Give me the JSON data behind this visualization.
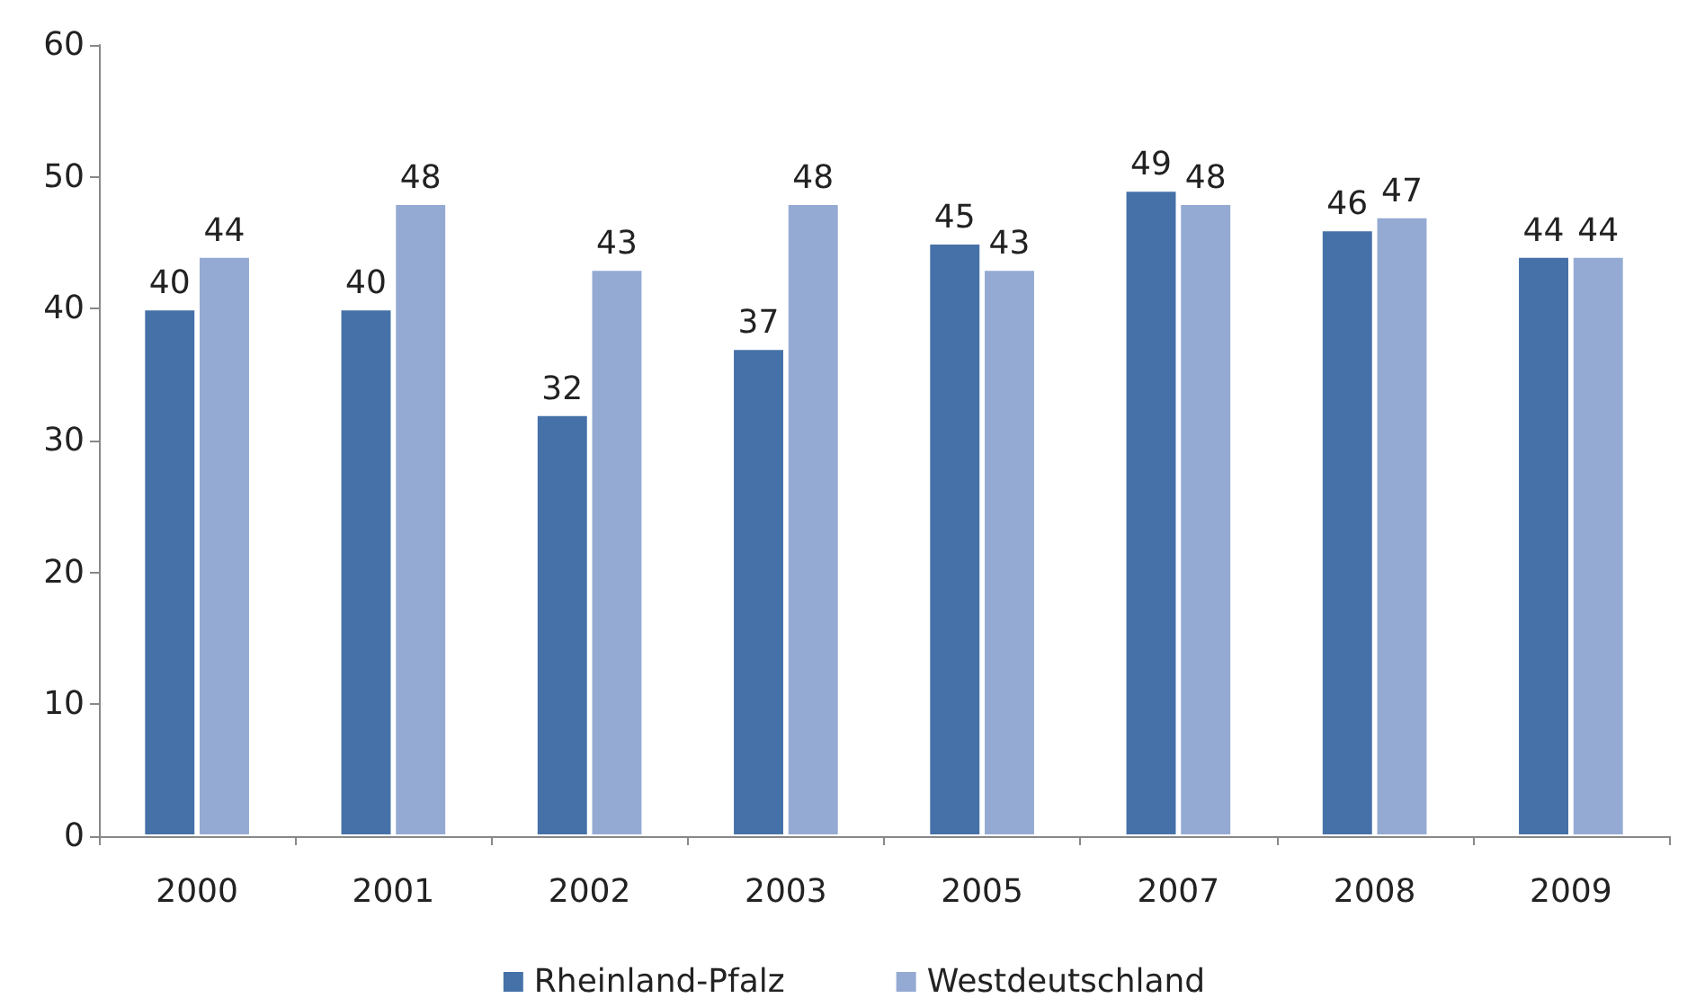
{
  "chart_data": {
    "type": "bar",
    "categories": [
      "2000",
      "2001",
      "2002",
      "2003",
      "2005",
      "2007",
      "2008",
      "2009"
    ],
    "series": [
      {
        "name": "Rheinland-Pfalz",
        "color": "#4571a8",
        "values": [
          40,
          40,
          32,
          37,
          45,
          49,
          46,
          44
        ]
      },
      {
        "name": "Westdeutschland",
        "color": "#94aad3",
        "values": [
          44,
          48,
          43,
          48,
          43,
          48,
          47,
          44
        ]
      }
    ],
    "ylim": [
      0,
      60
    ],
    "yticks": [
      0,
      10,
      20,
      30,
      40,
      50,
      60
    ],
    "grid": false,
    "legend": "bottom",
    "data_labels": true
  }
}
